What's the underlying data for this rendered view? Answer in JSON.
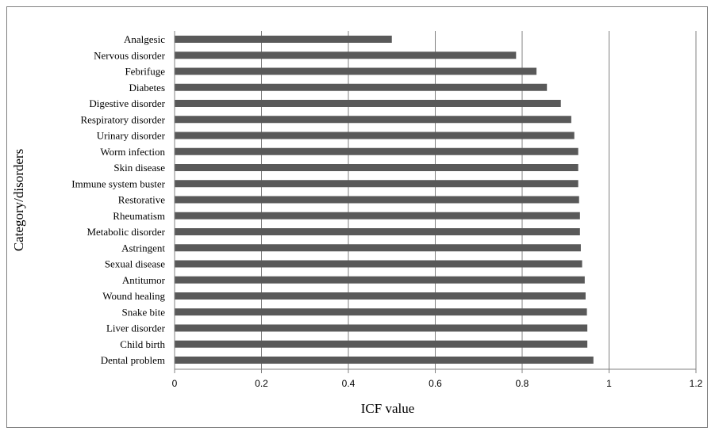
{
  "chart_data": {
    "type": "bar",
    "orientation": "horizontal",
    "title": "",
    "xlabel": "ICF value",
    "ylabel": "Category/disorders",
    "xlim": [
      0,
      1.2
    ],
    "xticks": [
      "0",
      "0.2",
      "0.4",
      "0.6",
      "0.8",
      "1",
      "1.2"
    ],
    "grid": "vertical",
    "legend": "none",
    "bar_color": "#595959",
    "categories": [
      "Analgesic",
      "Nervous disorder",
      "Febrifuge",
      "Diabetes",
      "Digestive disorder",
      "Respiratory disorder",
      "Urinary disorder",
      "Worm infection",
      "Skin disease",
      "Immune system buster",
      "Restorative",
      "Rheumatism",
      "Metabolic disorder",
      "Astringent",
      "Sexual disease",
      "Antitumor",
      "Wound healing",
      "Snake bite",
      "Liver disorder",
      "Child birth",
      "Dental problem"
    ],
    "values": [
      0.5,
      0.786,
      0.833,
      0.857,
      0.889,
      0.913,
      0.92,
      0.929,
      0.929,
      0.929,
      0.931,
      0.933,
      0.933,
      0.935,
      0.938,
      0.944,
      0.946,
      0.949,
      0.95,
      0.95,
      0.964
    ]
  }
}
